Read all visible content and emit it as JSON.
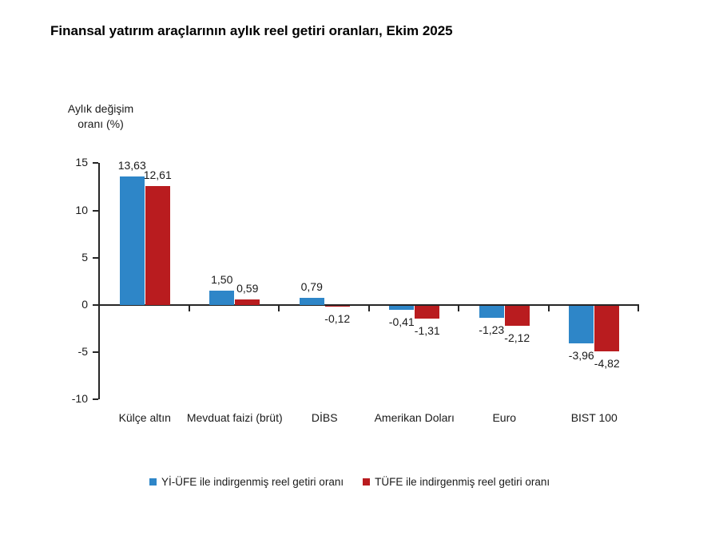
{
  "chart_data": {
    "type": "bar",
    "title": "Finansal yatırım araçlarının aylık reel getiri oranları, Ekim 2025",
    "ylabel": "Aylık değişim oranı (%)",
    "ylabel_lines": [
      "Aylık değişim",
      "oranı (%)"
    ],
    "categories": [
      "Külçe altın",
      "Mevduat faizi (brüt)",
      "DİBS",
      "Amerikan Doları",
      "Euro",
      "BIST 100"
    ],
    "series": [
      {
        "name": "Yİ-ÜFE ile indirgenmiş reel getiri oranı",
        "color": "#2E86C8",
        "values": [
          13.63,
          1.5,
          0.79,
          -0.41,
          -1.23,
          -3.96
        ],
        "labels": [
          "13,63",
          "1,50",
          "0,79",
          "-0,41",
          "-1,23",
          "-3,96"
        ]
      },
      {
        "name": "TÜFE ile indirgenmiş reel getiri oranı",
        "color": "#B91C1F",
        "values": [
          12.61,
          0.59,
          -0.12,
          -1.31,
          -2.12,
          -4.82
        ],
        "labels": [
          "12,61",
          "0,59",
          "-0,12",
          "-1,31",
          "-2,12",
          "-4,82"
        ]
      }
    ],
    "yticks": [
      15,
      10,
      5,
      0,
      -5,
      -10
    ],
    "ylim": [
      -10,
      15
    ],
    "grid": false,
    "legend_position": "bottom",
    "decimal_separator": ","
  }
}
